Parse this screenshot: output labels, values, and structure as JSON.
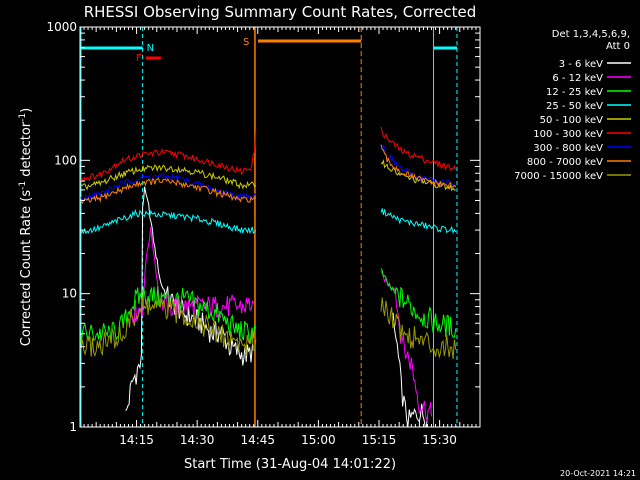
{
  "chart_data": {
    "type": "line",
    "title": "RHESSI Observing Summary Count Rates, Corrected",
    "xlabel": "Start Time (31-Aug-04 14:01:22)",
    "ylabel_parts": [
      "Corrected Count Rate (s",
      "-1",
      " detector",
      "-1",
      ")"
    ],
    "footer": "20-Oct-2021 14:21",
    "y_scale": "log",
    "ylim": [
      1,
      1000
    ],
    "xlim_minutes": [
      0,
      99
    ],
    "x_ticks": [
      {
        "m": 14,
        "label": "14:15"
      },
      {
        "m": 29,
        "label": "14:30"
      },
      {
        "m": 44,
        "label": "14:45"
      },
      {
        "m": 59,
        "label": "15:00"
      },
      {
        "m": 74,
        "label": "15:15"
      },
      {
        "m": 89,
        "label": "15:30"
      }
    ],
    "y_ticks": [
      {
        "v": 1,
        "label": "1"
      },
      {
        "v": 10,
        "label": "10"
      },
      {
        "v": 100,
        "label": "100"
      },
      {
        "v": 1000,
        "label": "1000"
      }
    ],
    "legend": {
      "header": [
        "Det 1,3,4,5,6,9,",
        "Att 0"
      ],
      "entries": [
        {
          "label": "3 - 6 keV",
          "color": "#ffffff"
        },
        {
          "label": "6 - 12 keV",
          "color": "#ff00ff"
        },
        {
          "label": "12 - 25 keV",
          "color": "#00ff00"
        },
        {
          "label": "25 - 50 keV",
          "color": "#00ffff"
        },
        {
          "label": "50 - 100 keV",
          "color": "#cccc00"
        },
        {
          "label": "100 - 300 keV",
          "color": "#ff0000"
        },
        {
          "label": "300 - 800 keV",
          "color": "#0000ff"
        },
        {
          "label": "800 - 7000 keV",
          "color": "#ff8000"
        },
        {
          "label": "7000 - 15000 keV",
          "color": "#999900"
        }
      ]
    },
    "flags": [
      {
        "label": "N",
        "color": "#00ffff",
        "start": 15.5,
        "end": 15.5
      },
      {
        "label": "F",
        "color": "#ff0000",
        "start": 16.3,
        "end": 20.0
      },
      {
        "label": "S",
        "color": "#ff8000",
        "start": 43.3,
        "end": 69.6
      }
    ],
    "series": [
      {
        "name": "3 - 6 keV",
        "color": "#ffffff",
        "segments": [
          {
            "x": [
              11.3,
              13.0,
              14.5,
              15.2,
              15.5,
              16.0,
              17.0,
              18.5,
              20.0,
              22.0,
              24.0,
              26.0,
              28.0,
              30.0,
              33.0,
              35.0,
              37.0,
              40.0,
              42.0,
              43.0
            ],
            "y": [
              1.2,
              2.2,
              2.8,
              3.0,
              45,
              60,
              45,
              22,
              12,
              9,
              8,
              7,
              6.5,
              6,
              5,
              5.2,
              4,
              3.5,
              3.5,
              4
            ]
          },
          {
            "x": [
              77.5,
              78.5,
              79.5,
              80.5,
              81.5,
              82.5,
              84.0,
              86.0
            ],
            "y": [
              6,
              4,
              2,
              1.3,
              1.1,
              1.2,
              1.3,
              1.2
            ]
          }
        ]
      },
      {
        "name": "6 - 12 keV",
        "color": "#ff00ff",
        "segments": [
          {
            "x": [
              12.0,
              14.0,
              15.5,
              16.5,
              17.5,
              18.5,
              19.5,
              20.5,
              22.0,
              24.0,
              26.0,
              30.0,
              35.0,
              40.0,
              43.0
            ],
            "y": [
              7,
              7.5,
              8,
              20,
              30,
              18,
              10,
              8.5,
              8,
              8,
              8,
              8,
              8,
              8,
              8.5
            ]
          },
          {
            "x": [
              74.5,
              76.0,
              78.0,
              79.0,
              80.0,
              82.0,
              84.0,
              86.5,
              87.0
            ],
            "y": [
              14,
              12,
              11,
              6,
              4,
              3,
              1.5,
              1.3,
              1.2
            ]
          }
        ]
      },
      {
        "name": "12 - 25 keV",
        "color": "#00ff00",
        "segments": [
          {
            "x": [
              0,
              4,
              8,
              11,
              12.5,
              14,
              16,
              18,
              22,
              26,
              30,
              34,
              38,
              42,
              43.5
            ],
            "y": [
              5,
              5,
              5,
              6,
              8,
              9,
              10,
              9.5,
              9,
              9,
              8,
              7,
              5.5,
              5,
              5.5
            ]
          },
          {
            "x": [
              74.5,
              76,
              78,
              80,
              82,
              84,
              86,
              88,
              90,
              92,
              93
            ],
            "y": [
              15,
              12,
              10,
              9,
              8,
              7,
              6.5,
              6,
              5.8,
              5.6,
              5.5
            ]
          }
        ]
      },
      {
        "name": "25 - 50 keV",
        "color": "#00ffff",
        "segments": [
          {
            "x": [
              0,
              5,
              10,
              14,
              16,
              20,
              25,
              30,
              35,
              40,
              43.5
            ],
            "y": [
              29,
              31,
              36,
              40,
              40,
              39,
              38,
              36,
              33,
              30,
              30
            ]
          },
          {
            "x": [
              74.5,
              76,
              78,
              80,
              84,
              88,
              92,
              93
            ],
            "y": [
              42,
              40,
              37,
              35,
              33,
              31,
              30,
              29
            ]
          }
        ]
      },
      {
        "name": "50 - 100 keV",
        "color": "#cccc00",
        "segments": [
          {
            "x": [
              0,
              5,
              10,
              15,
              20,
              25,
              30,
              35,
              40,
              43.5
            ],
            "y": [
              62,
              67,
              78,
              86,
              88,
              86,
              80,
              73,
              65,
              65
            ]
          },
          {
            "x": [
              74.5,
              76,
              78,
              80,
              84,
              88,
              92,
              93
            ],
            "y": [
              100,
              90,
              82,
              76,
              70,
              66,
              62,
              60
            ]
          }
        ]
      },
      {
        "name": "100 - 300 keV",
        "color": "#ff0000",
        "segments": [
          {
            "x": [
              0,
              5,
              10,
              15,
              20,
              25,
              30,
              35,
              40,
              42.5,
              43.2,
              43.5
            ],
            "y": [
              72,
              78,
              98,
              110,
              115,
              110,
              100,
              92,
              82,
              90,
              120,
              170
            ]
          },
          {
            "x": [
              74.5,
              76,
              78,
              80,
              84,
              88,
              92,
              93
            ],
            "y": [
              170,
              145,
              130,
              115,
              105,
              95,
              88,
              85
            ]
          }
        ]
      },
      {
        "name": "300 - 800 keV",
        "color": "#0000ff",
        "segments": [
          {
            "x": [
              0,
              5,
              10,
              15,
              20,
              25,
              30,
              35,
              40,
              43.5
            ],
            "y": [
              52,
              56,
              66,
              74,
              76,
              73,
              65,
              58,
              53,
              55
            ]
          },
          {
            "x": [
              74.5,
              76,
              78,
              80,
              84,
              88,
              92,
              93
            ],
            "y": [
              135,
              110,
              95,
              85,
              75,
              70,
              67,
              65
            ]
          }
        ]
      },
      {
        "name": "800 - 7000 keV",
        "color": "#ff8000",
        "segments": [
          {
            "x": [
              0,
              5,
              10,
              15,
              20,
              25,
              30,
              35,
              40,
              43.5
            ],
            "y": [
              48,
              52,
              60,
              68,
              70,
              67,
              62,
              56,
              50,
              52
            ]
          },
          {
            "x": [
              74.5,
              76,
              78,
              80,
              84,
              88,
              92,
              93
            ],
            "y": [
              125,
              100,
              88,
              80,
              72,
              67,
              64,
              63
            ]
          }
        ]
      },
      {
        "name": "7000 - 15000 keV",
        "color": "#999900",
        "segments": [
          {
            "x": [
              0,
              4,
              8,
              11,
              12,
              14,
              16,
              18,
              22,
              26,
              30,
              34,
              38,
              42,
              43.5
            ],
            "y": [
              4,
              4,
              4.5,
              5,
              6,
              7,
              8,
              8,
              7.5,
              7,
              6,
              5,
              4.5,
              4,
              4.5
            ]
          },
          {
            "x": [
              74.5,
              76,
              78,
              80,
              84,
              88,
              92,
              93
            ],
            "y": [
              9,
              7.5,
              6.5,
              5,
              4.5,
              4,
              4,
              3.8
            ]
          }
        ]
      }
    ]
  }
}
